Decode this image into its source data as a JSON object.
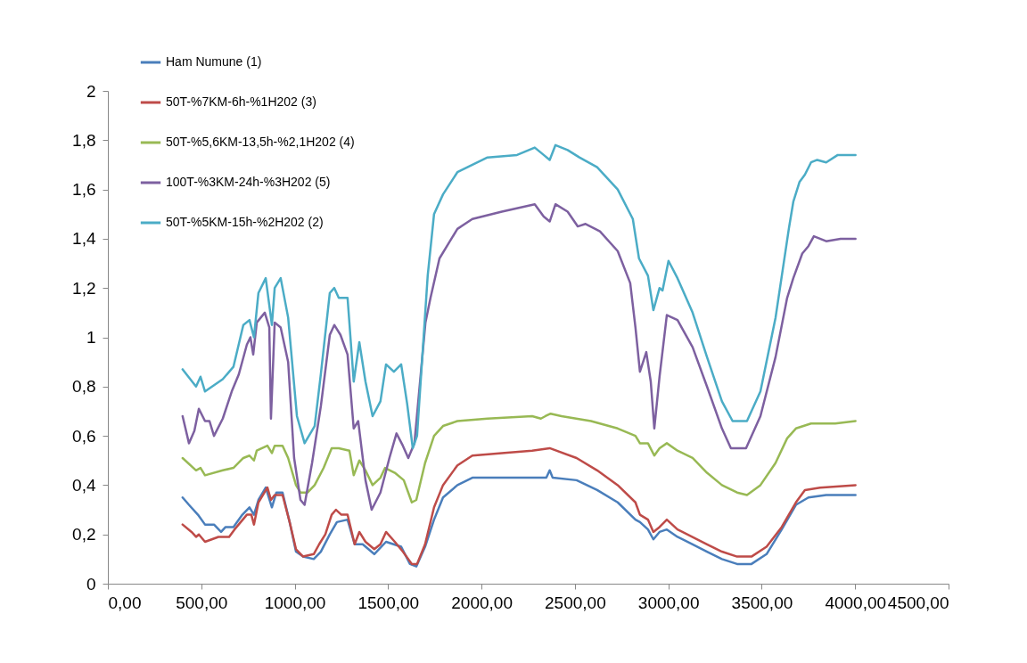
{
  "chart_data": {
    "type": "line",
    "legend": "top left",
    "grid": false,
    "xlim": [
      0,
      4500
    ],
    "ylim": [
      0,
      2
    ],
    "xticks": [
      {
        "value": 0,
        "label": "0,00"
      },
      {
        "value": 500,
        "label": "500,00"
      },
      {
        "value": 1000,
        "label": "1000,00"
      },
      {
        "value": 1500,
        "label": "1500,00"
      },
      {
        "value": 2000,
        "label": "2000,00"
      },
      {
        "value": 2500,
        "label": "2500,00"
      },
      {
        "value": 3000,
        "label": "3000,00"
      },
      {
        "value": 3500,
        "label": "3500,00"
      },
      {
        "value": 4000,
        "label": "4000,00"
      },
      {
        "value": 4500,
        "label": "4500,00"
      }
    ],
    "yticks": [
      0,
      {
        "value": 0.2,
        "label": "0,2"
      },
      {
        "value": 0.4,
        "label": "0,4"
      },
      {
        "value": 0.6,
        "label": "0,6"
      },
      {
        "value": 0.8,
        "label": "0,8"
      },
      1,
      {
        "value": 1.2,
        "label": "1,2"
      },
      {
        "value": 1.4,
        "label": "1,4"
      },
      {
        "value": 1.6,
        "label": "1,6"
      },
      {
        "value": 1.8,
        "label": "1,8"
      },
      2
    ],
    "series": [
      {
        "name": "Ham Numune (1)",
        "color": "#4a7ebb",
        "x": [
          400,
          434,
          482,
          520,
          568,
          606,
          630,
          672,
          720,
          758,
          782,
          806,
          845,
          878,
          902,
          935,
          973,
          1007,
          1045,
          1102,
          1140,
          1188,
          1226,
          1283,
          1321,
          1364,
          1426,
          1489,
          1570,
          1617,
          1651,
          1698,
          1746,
          1794,
          1871,
          1951,
          2109,
          2318,
          2347,
          2365,
          2381,
          2509,
          2619,
          2729,
          2824,
          2848,
          2891,
          2920,
          2953,
          2992,
          3049,
          3130,
          3207,
          3287,
          3368,
          3445,
          3526,
          3607,
          3683,
          3750,
          3845,
          4002
        ],
        "values": [
          0.35,
          0.32,
          0.28,
          0.24,
          0.24,
          0.21,
          0.23,
          0.23,
          0.28,
          0.31,
          0.28,
          0.34,
          0.39,
          0.31,
          0.37,
          0.37,
          0.25,
          0.13,
          0.11,
          0.1,
          0.13,
          0.2,
          0.25,
          0.26,
          0.16,
          0.16,
          0.12,
          0.17,
          0.15,
          0.08,
          0.07,
          0.15,
          0.26,
          0.35,
          0.4,
          0.43,
          0.43,
          0.43,
          0.43,
          0.46,
          0.43,
          0.42,
          0.38,
          0.33,
          0.26,
          0.25,
          0.22,
          0.18,
          0.21,
          0.22,
          0.19,
          0.16,
          0.13,
          0.1,
          0.08,
          0.08,
          0.12,
          0.22,
          0.32,
          0.35,
          0.36,
          0.36
        ]
      },
      {
        "name": "50T-%7KM-6h-%1H202 (3)",
        "color": "#be4b48",
        "x": [
          400,
          448,
          472,
          487,
          520,
          592,
          649,
          678,
          744,
          768,
          782,
          806,
          854,
          873,
          893,
          935,
          973,
          1007,
          1045,
          1102,
          1131,
          1164,
          1198,
          1221,
          1250,
          1283,
          1321,
          1346,
          1379,
          1426,
          1459,
          1489,
          1536,
          1579,
          1627,
          1655,
          1698,
          1746,
          1794,
          1871,
          1951,
          2109,
          2271,
          2365,
          2509,
          2619,
          2729,
          2824,
          2848,
          2891,
          2920,
          2953,
          2992,
          3049,
          3207,
          3287,
          3368,
          3445,
          3526,
          3607,
          3683,
          3731,
          3812,
          4002
        ],
        "values": [
          0.24,
          0.21,
          0.19,
          0.2,
          0.17,
          0.19,
          0.19,
          0.22,
          0.28,
          0.28,
          0.24,
          0.33,
          0.39,
          0.34,
          0.36,
          0.36,
          0.25,
          0.14,
          0.11,
          0.12,
          0.16,
          0.2,
          0.28,
          0.3,
          0.28,
          0.28,
          0.16,
          0.21,
          0.17,
          0.14,
          0.16,
          0.21,
          0.17,
          0.13,
          0.08,
          0.08,
          0.16,
          0.31,
          0.4,
          0.48,
          0.52,
          0.53,
          0.54,
          0.55,
          0.51,
          0.46,
          0.4,
          0.33,
          0.28,
          0.26,
          0.21,
          0.23,
          0.26,
          0.22,
          0.16,
          0.13,
          0.11,
          0.11,
          0.15,
          0.23,
          0.33,
          0.38,
          0.39,
          0.4
        ]
      },
      {
        "name": "50T-%5,6KM-13,5h-%2,1H202 (4)",
        "color": "#98b954",
        "x": [
          400,
          472,
          496,
          520,
          615,
          672,
          725,
          758,
          782,
          797,
          854,
          878,
          893,
          935,
          965,
          1007,
          1031,
          1069,
          1107,
          1155,
          1198,
          1236,
          1293,
          1316,
          1346,
          1379,
          1417,
          1459,
          1484,
          1536,
          1584,
          1627,
          1651,
          1698,
          1746,
          1794,
          1871,
          2032,
          2271,
          2318,
          2342,
          2370,
          2428,
          2586,
          2729,
          2824,
          2848,
          2891,
          2925,
          2953,
          2992,
          3049,
          3130,
          3207,
          3287,
          3368,
          3421,
          3493,
          3574,
          3636,
          3683,
          3764,
          3893,
          4002
        ],
        "values": [
          0.51,
          0.46,
          0.47,
          0.44,
          0.46,
          0.47,
          0.51,
          0.52,
          0.5,
          0.54,
          0.56,
          0.53,
          0.56,
          0.56,
          0.51,
          0.4,
          0.37,
          0.37,
          0.4,
          0.47,
          0.55,
          0.55,
          0.54,
          0.44,
          0.5,
          0.46,
          0.4,
          0.43,
          0.47,
          0.45,
          0.42,
          0.33,
          0.34,
          0.49,
          0.6,
          0.64,
          0.66,
          0.67,
          0.68,
          0.67,
          0.68,
          0.69,
          0.68,
          0.66,
          0.63,
          0.6,
          0.57,
          0.57,
          0.52,
          0.55,
          0.57,
          0.54,
          0.51,
          0.45,
          0.4,
          0.37,
          0.36,
          0.4,
          0.49,
          0.59,
          0.63,
          0.65,
          0.65,
          0.66
        ]
      },
      {
        "name": "100T-%3KM-24h-%3H202 (5)",
        "color": "#7d60a0",
        "x": [
          400,
          434,
          463,
          487,
          520,
          544,
          568,
          615,
          663,
          701,
          744,
          763,
          778,
          797,
          840,
          864,
          873,
          893,
          925,
          965,
          997,
          1031,
          1053,
          1093,
          1140,
          1188,
          1212,
          1245,
          1283,
          1316,
          1340,
          1379,
          1412,
          1459,
          1507,
          1545,
          1579,
          1608,
          1641,
          1700,
          1727,
          1775,
          1823,
          1871,
          1951,
          2109,
          2285,
          2333,
          2365,
          2396,
          2461,
          2515,
          2557,
          2634,
          2729,
          2796,
          2824,
          2848,
          2882,
          2906,
          2925,
          2953,
          2992,
          3049,
          3130,
          3207,
          3287,
          3335,
          3416,
          3493,
          3574,
          3636,
          3669,
          3717,
          3750,
          3779,
          3845,
          3922,
          4002
        ],
        "values": [
          0.68,
          0.57,
          0.62,
          0.71,
          0.66,
          0.66,
          0.6,
          0.67,
          0.78,
          0.85,
          0.97,
          1.0,
          0.93,
          1.06,
          1.1,
          1.04,
          0.67,
          1.06,
          1.04,
          0.9,
          0.51,
          0.34,
          0.32,
          0.49,
          0.72,
          1.01,
          1.05,
          1.01,
          0.93,
          0.63,
          0.66,
          0.42,
          0.3,
          0.37,
          0.51,
          0.61,
          0.56,
          0.51,
          0.57,
          1.06,
          1.16,
          1.32,
          1.38,
          1.44,
          1.48,
          1.51,
          1.54,
          1.49,
          1.47,
          1.54,
          1.51,
          1.45,
          1.46,
          1.43,
          1.35,
          1.22,
          1.04,
          0.86,
          0.94,
          0.82,
          0.63,
          0.84,
          1.09,
          1.07,
          0.96,
          0.8,
          0.63,
          0.55,
          0.55,
          0.68,
          0.92,
          1.16,
          1.24,
          1.34,
          1.37,
          1.41,
          1.39,
          1.4,
          1.4
        ]
      },
      {
        "name": "50T-%5KM-15h-%2H202 (2)",
        "color": "#4bacc6",
        "x": [
          400,
          472,
          496,
          520,
          615,
          672,
          725,
          758,
          782,
          806,
          845,
          878,
          893,
          925,
          965,
          1012,
          1053,
          1107,
          1140,
          1188,
          1212,
          1236,
          1283,
          1316,
          1346,
          1379,
          1417,
          1459,
          1489,
          1531,
          1570,
          1602,
          1632,
          1655,
          1712,
          1746,
          1794,
          1871,
          2032,
          2190,
          2285,
          2333,
          2365,
          2396,
          2461,
          2524,
          2619,
          2729,
          2810,
          2843,
          2891,
          2920,
          2953,
          2969,
          3001,
          3049,
          3130,
          3207,
          3287,
          3344,
          3421,
          3493,
          3574,
          3645,
          3669,
          3702,
          3731,
          3764,
          3797,
          3845,
          3907,
          4002
        ],
        "values": [
          0.87,
          0.8,
          0.84,
          0.78,
          0.83,
          0.88,
          1.05,
          1.07,
          1.0,
          1.18,
          1.24,
          1.05,
          1.2,
          1.24,
          1.08,
          0.68,
          0.57,
          0.64,
          0.85,
          1.18,
          1.2,
          1.16,
          1.16,
          0.82,
          0.98,
          0.82,
          0.68,
          0.74,
          0.89,
          0.86,
          0.89,
          0.73,
          0.55,
          0.6,
          1.25,
          1.5,
          1.58,
          1.67,
          1.73,
          1.74,
          1.77,
          1.74,
          1.72,
          1.78,
          1.76,
          1.73,
          1.69,
          1.6,
          1.48,
          1.32,
          1.25,
          1.11,
          1.2,
          1.19,
          1.31,
          1.24,
          1.1,
          0.92,
          0.74,
          0.66,
          0.66,
          0.78,
          1.08,
          1.44,
          1.55,
          1.63,
          1.66,
          1.71,
          1.72,
          1.71,
          1.74,
          1.74
        ]
      }
    ]
  }
}
